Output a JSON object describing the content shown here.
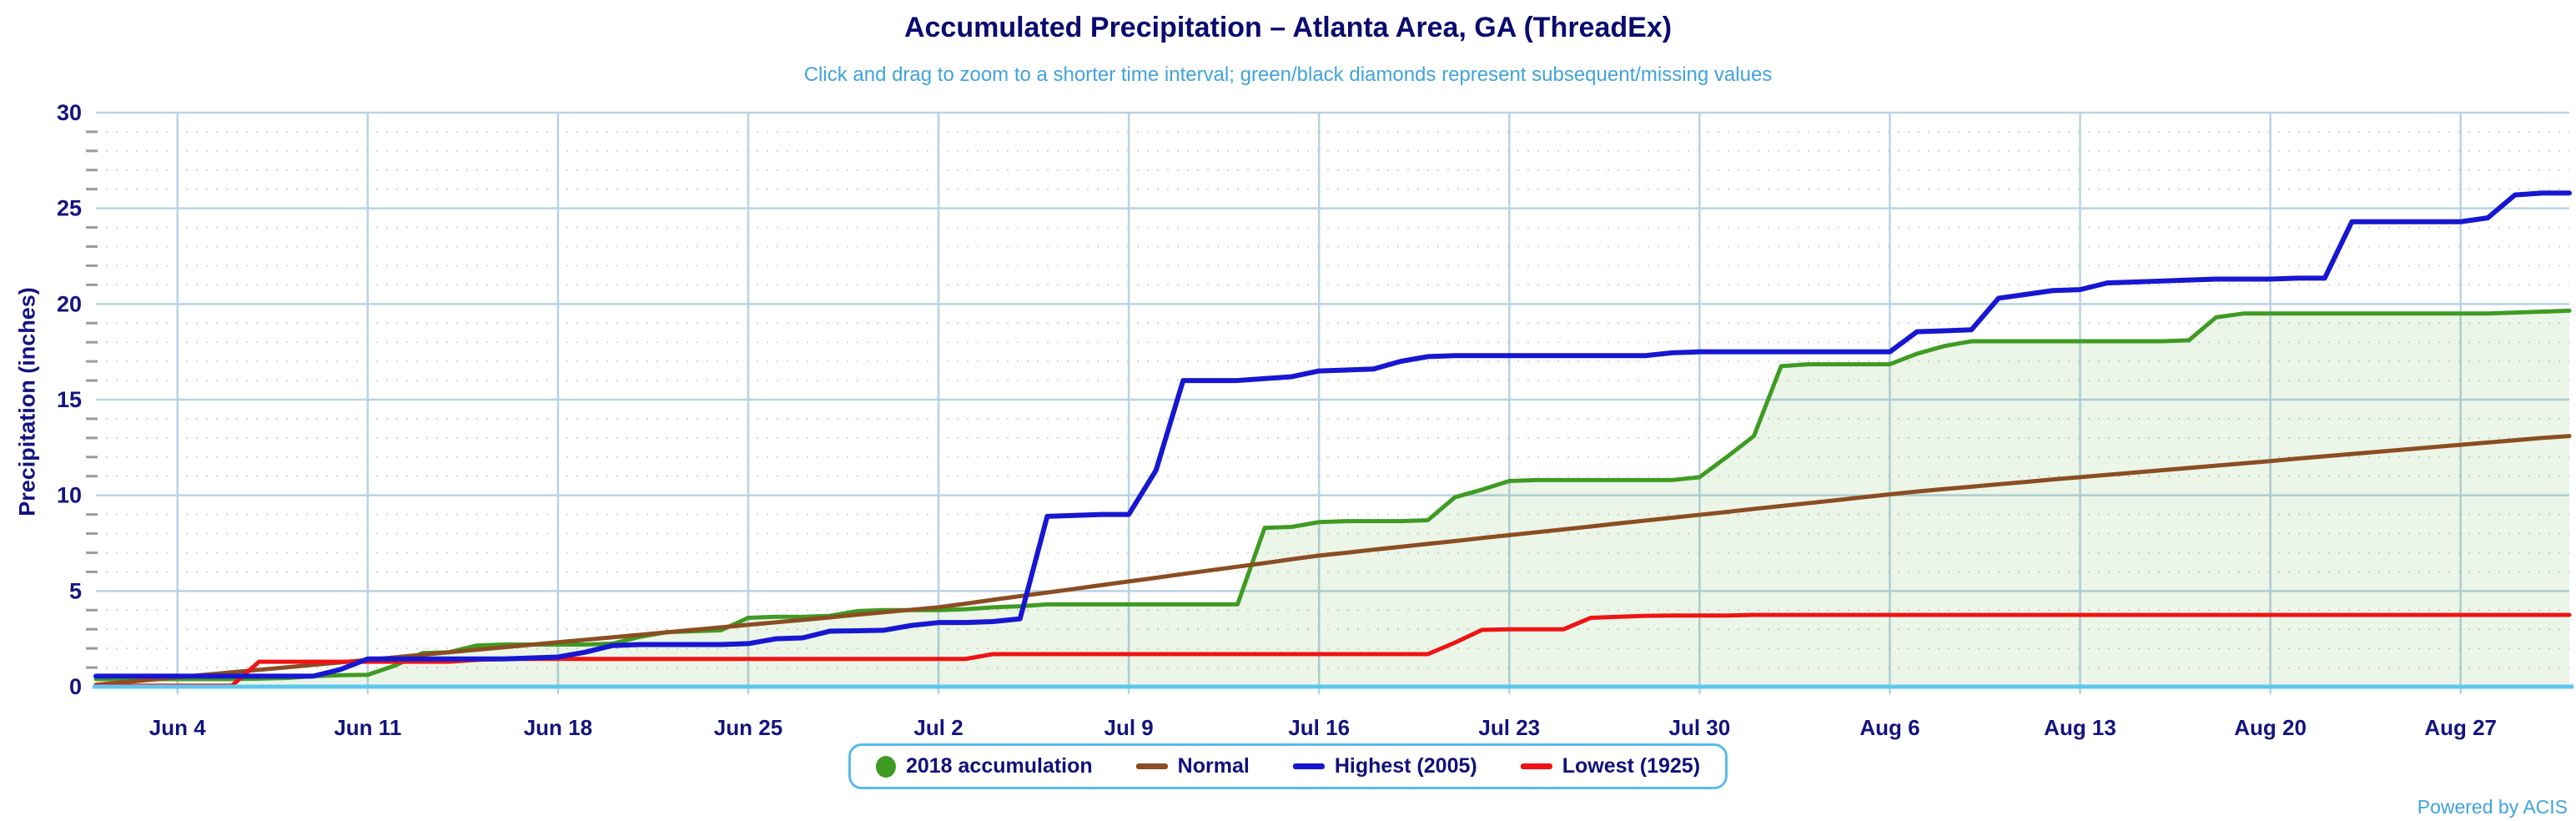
{
  "title": "Accumulated Precipitation – Atlanta Area, GA (ThreadEx)",
  "subtitle": "Click and drag to zoom to a shorter time interval; green/black diamonds represent subsequent/missing values",
  "credit": "Powered by ACIS",
  "colors": {
    "title_text": "#0a0a70",
    "subtitle_text": "#41a3da",
    "axis_text": "#14147f",
    "major_grid": "#b9d2e4",
    "minor_grid": "#d4d4d4",
    "minor_tick": "#9b9b9b",
    "bottom_axis": "#5ec7ee",
    "legend_border": "#59bbe9",
    "accumulation_green": "#3f9b22",
    "accumulation_fill": "rgba(63,155,34,0.10)",
    "normal_brown": "#8b4d22",
    "highest_blue": "#1717d1",
    "lowest_red": "#ef1313"
  },
  "legend": {
    "items": [
      {
        "label": "2018 accumulation",
        "swatch": "circle",
        "color": "#3f9b22"
      },
      {
        "label": "Normal",
        "swatch": "line",
        "color": "#8b4d22"
      },
      {
        "label": "Highest (2005)",
        "swatch": "line",
        "color": "#1717d1"
      },
      {
        "label": "Lowest (1925)",
        "swatch": "line",
        "color": "#ef1313"
      }
    ]
  },
  "chart_data": {
    "type": "line",
    "title": "Accumulated Precipitation – Atlanta Area, GA (ThreadEx)",
    "xlabel": "",
    "ylabel": "Precipitation (inches)",
    "x_start": "Jun 1",
    "x_end": "Aug 31",
    "days": 92,
    "y_min": 0,
    "y_max": 30,
    "y_major_step": 5,
    "y_minor_step": 1,
    "y_tick_labels": [
      "0",
      "5",
      "10",
      "15",
      "20",
      "25",
      "30"
    ],
    "x_tick_labels": [
      "Jun 4",
      "Jun 11",
      "Jun 18",
      "Jun 25",
      "Jul 2",
      "Jul 9",
      "Jul 16",
      "Jul 23",
      "Jul 30",
      "Aug 6",
      "Aug 13",
      "Aug 20",
      "Aug 27"
    ],
    "x_tick_days": [
      3,
      10,
      17,
      24,
      31,
      38,
      45,
      52,
      59,
      66,
      73,
      80,
      87
    ],
    "grid": "major solid light blue, minor horizontal dotted gray",
    "legend_position": "bottom center",
    "series": [
      {
        "name": "2018 accumulation",
        "color": "#3f9b22",
        "fill": true,
        "width": 5,
        "values": [
          0.4,
          0.4,
          0.4,
          0.4,
          0.4,
          0.4,
          0.42,
          0.45,
          0.55,
          0.6,
          0.62,
          1.1,
          1.75,
          1.8,
          2.15,
          2.2,
          2.2,
          2.2,
          2.2,
          2.25,
          2.6,
          2.85,
          2.9,
          2.95,
          3.6,
          3.65,
          3.65,
          3.7,
          3.95,
          4.0,
          4.0,
          4.0,
          4.05,
          4.15,
          4.2,
          4.3,
          4.3,
          4.3,
          4.3,
          4.3,
          4.3,
          4.3,
          4.3,
          8.3,
          8.35,
          8.6,
          8.65,
          8.65,
          8.65,
          8.7,
          9.9,
          10.3,
          10.75,
          10.8,
          10.8,
          10.8,
          10.8,
          10.8,
          10.8,
          10.95,
          12.0,
          13.1,
          16.75,
          16.85,
          16.85,
          16.85,
          16.85,
          17.4,
          17.8,
          18.05,
          18.05,
          18.05,
          18.05,
          18.05,
          18.05,
          18.05,
          18.05,
          18.1,
          19.3,
          19.5,
          19.5,
          19.5,
          19.5,
          19.5,
          19.5,
          19.5,
          19.5,
          19.5,
          19.5,
          19.55,
          19.6,
          19.65
        ]
      },
      {
        "name": "Normal",
        "color": "#8b4d22",
        "fill": false,
        "width": 5,
        "values": [
          0.1,
          0.23,
          0.36,
          0.49,
          0.62,
          0.75,
          0.88,
          1.01,
          1.14,
          1.27,
          1.4,
          1.53,
          1.67,
          1.8,
          1.93,
          2.06,
          2.19,
          2.32,
          2.45,
          2.58,
          2.71,
          2.84,
          2.97,
          3.1,
          3.23,
          3.36,
          3.49,
          3.62,
          3.76,
          3.89,
          4.02,
          4.15,
          4.34,
          4.54,
          4.73,
          4.92,
          5.11,
          5.31,
          5.5,
          5.69,
          5.89,
          6.08,
          6.27,
          6.46,
          6.66,
          6.85,
          7.0,
          7.16,
          7.31,
          7.46,
          7.61,
          7.77,
          7.92,
          8.07,
          8.22,
          8.37,
          8.53,
          8.68,
          8.83,
          8.98,
          9.13,
          9.29,
          9.44,
          9.59,
          9.74,
          9.9,
          10.05,
          10.2,
          10.33,
          10.45,
          10.58,
          10.7,
          10.83,
          10.95,
          11.07,
          11.19,
          11.31,
          11.43,
          11.55,
          11.67,
          11.79,
          11.92,
          12.04,
          12.16,
          12.28,
          12.4,
          12.52,
          12.64,
          12.76,
          12.88,
          13.0,
          13.1
        ]
      },
      {
        "name": "Lowest (1925)",
        "color": "#ef1313",
        "fill": false,
        "width": 5,
        "values": [
          0.05,
          0.05,
          0.05,
          0.05,
          0.05,
          0.05,
          1.3,
          1.3,
          1.3,
          1.3,
          1.3,
          1.3,
          1.3,
          1.3,
          1.4,
          1.45,
          1.45,
          1.45,
          1.45,
          1.45,
          1.45,
          1.45,
          1.45,
          1.45,
          1.45,
          1.45,
          1.45,
          1.45,
          1.45,
          1.45,
          1.45,
          1.45,
          1.45,
          1.7,
          1.7,
          1.7,
          1.7,
          1.7,
          1.7,
          1.7,
          1.7,
          1.7,
          1.7,
          1.7,
          1.7,
          1.7,
          1.7,
          1.7,
          1.7,
          1.7,
          2.3,
          2.97,
          3.0,
          3.0,
          3.0,
          3.6,
          3.65,
          3.7,
          3.72,
          3.72,
          3.72,
          3.75,
          3.75,
          3.75,
          3.75,
          3.75,
          3.75,
          3.75,
          3.75,
          3.75,
          3.75,
          3.75,
          3.75,
          3.75,
          3.75,
          3.75,
          3.75,
          3.75,
          3.75,
          3.75,
          3.75,
          3.75,
          3.75,
          3.75,
          3.75,
          3.75,
          3.75,
          3.75,
          3.75,
          3.75,
          3.75,
          3.75
        ]
      },
      {
        "name": "Highest (2005)",
        "color": "#1717d1",
        "fill": false,
        "width": 6,
        "values": [
          0.55,
          0.55,
          0.55,
          0.55,
          0.55,
          0.55,
          0.55,
          0.55,
          0.55,
          0.9,
          1.45,
          1.45,
          1.45,
          1.45,
          1.45,
          1.45,
          1.5,
          1.55,
          1.8,
          2.15,
          2.2,
          2.2,
          2.2,
          2.2,
          2.25,
          2.5,
          2.55,
          2.9,
          2.92,
          2.95,
          3.2,
          3.35,
          3.35,
          3.4,
          3.55,
          8.9,
          8.95,
          9.0,
          9.0,
          11.3,
          16.0,
          16.0,
          16.0,
          16.1,
          16.2,
          16.5,
          16.55,
          16.6,
          17.0,
          17.25,
          17.3,
          17.3,
          17.3,
          17.3,
          17.3,
          17.3,
          17.3,
          17.3,
          17.45,
          17.5,
          17.5,
          17.5,
          17.5,
          17.5,
          17.5,
          17.5,
          17.5,
          18.55,
          18.6,
          18.65,
          20.3,
          20.5,
          20.7,
          20.75,
          21.1,
          21.15,
          21.2,
          21.25,
          21.3,
          21.3,
          21.3,
          21.35,
          21.35,
          24.3,
          24.3,
          24.3,
          24.3,
          24.3,
          24.5,
          25.7,
          25.8,
          25.8
        ]
      }
    ]
  }
}
